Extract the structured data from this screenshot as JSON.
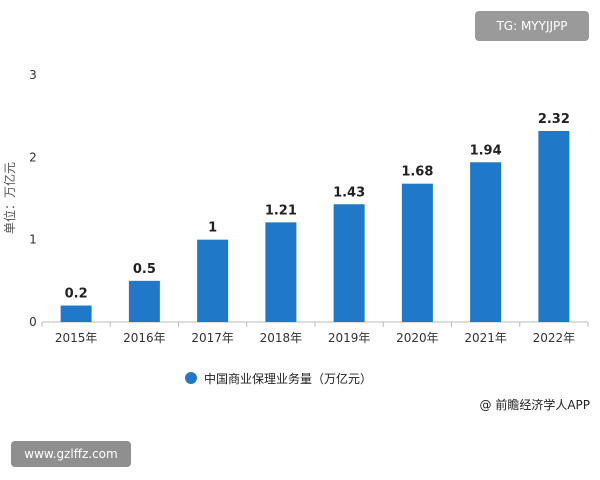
{
  "chart_data": {
    "type": "bar",
    "categories": [
      "2015年",
      "2016年",
      "2017年",
      "2018年",
      "2019年",
      "2020年",
      "2021年",
      "2022年"
    ],
    "series": [
      {
        "name": "中国商业保理业务量（万亿元）",
        "values": [
          0.2,
          0.5,
          1,
          1.21,
          1.43,
          1.68,
          1.94,
          2.32
        ]
      }
    ],
    "data_labels": [
      "0.2",
      "0.5",
      "1",
      "1.21",
      "1.43",
      "1.68",
      "1.94",
      "2.32"
    ],
    "y_ticks": [
      "0",
      "1",
      "2",
      "3"
    ],
    "ylabel": "单位：万亿元",
    "xlabel": "",
    "ylim": [
      0,
      3
    ],
    "grid": false,
    "legend_position": "bottom",
    "bar_color": "#1f78c8"
  },
  "source": "@ 前瞻经济学人APP",
  "watermark_top": "TG: MYYJJPP",
  "watermark_bottom": "www.gzlffz.com"
}
